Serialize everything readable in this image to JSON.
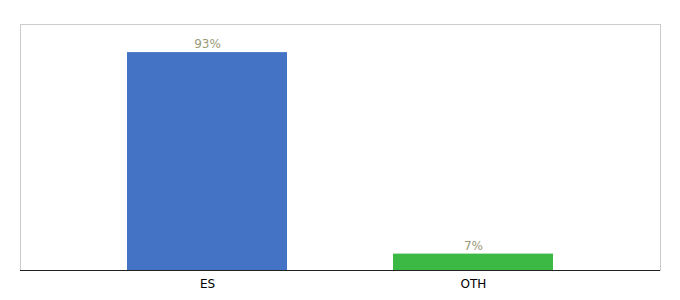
{
  "chart_data": {
    "type": "bar",
    "categories": [
      "ES",
      "OTH"
    ],
    "values": [
      93,
      7
    ],
    "value_labels": [
      "93%",
      "7%"
    ],
    "colors": [
      "#4472c4",
      "#3cb944"
    ],
    "data_labels": true,
    "ylim": [
      0,
      105
    ],
    "tick_labels": "x"
  }
}
